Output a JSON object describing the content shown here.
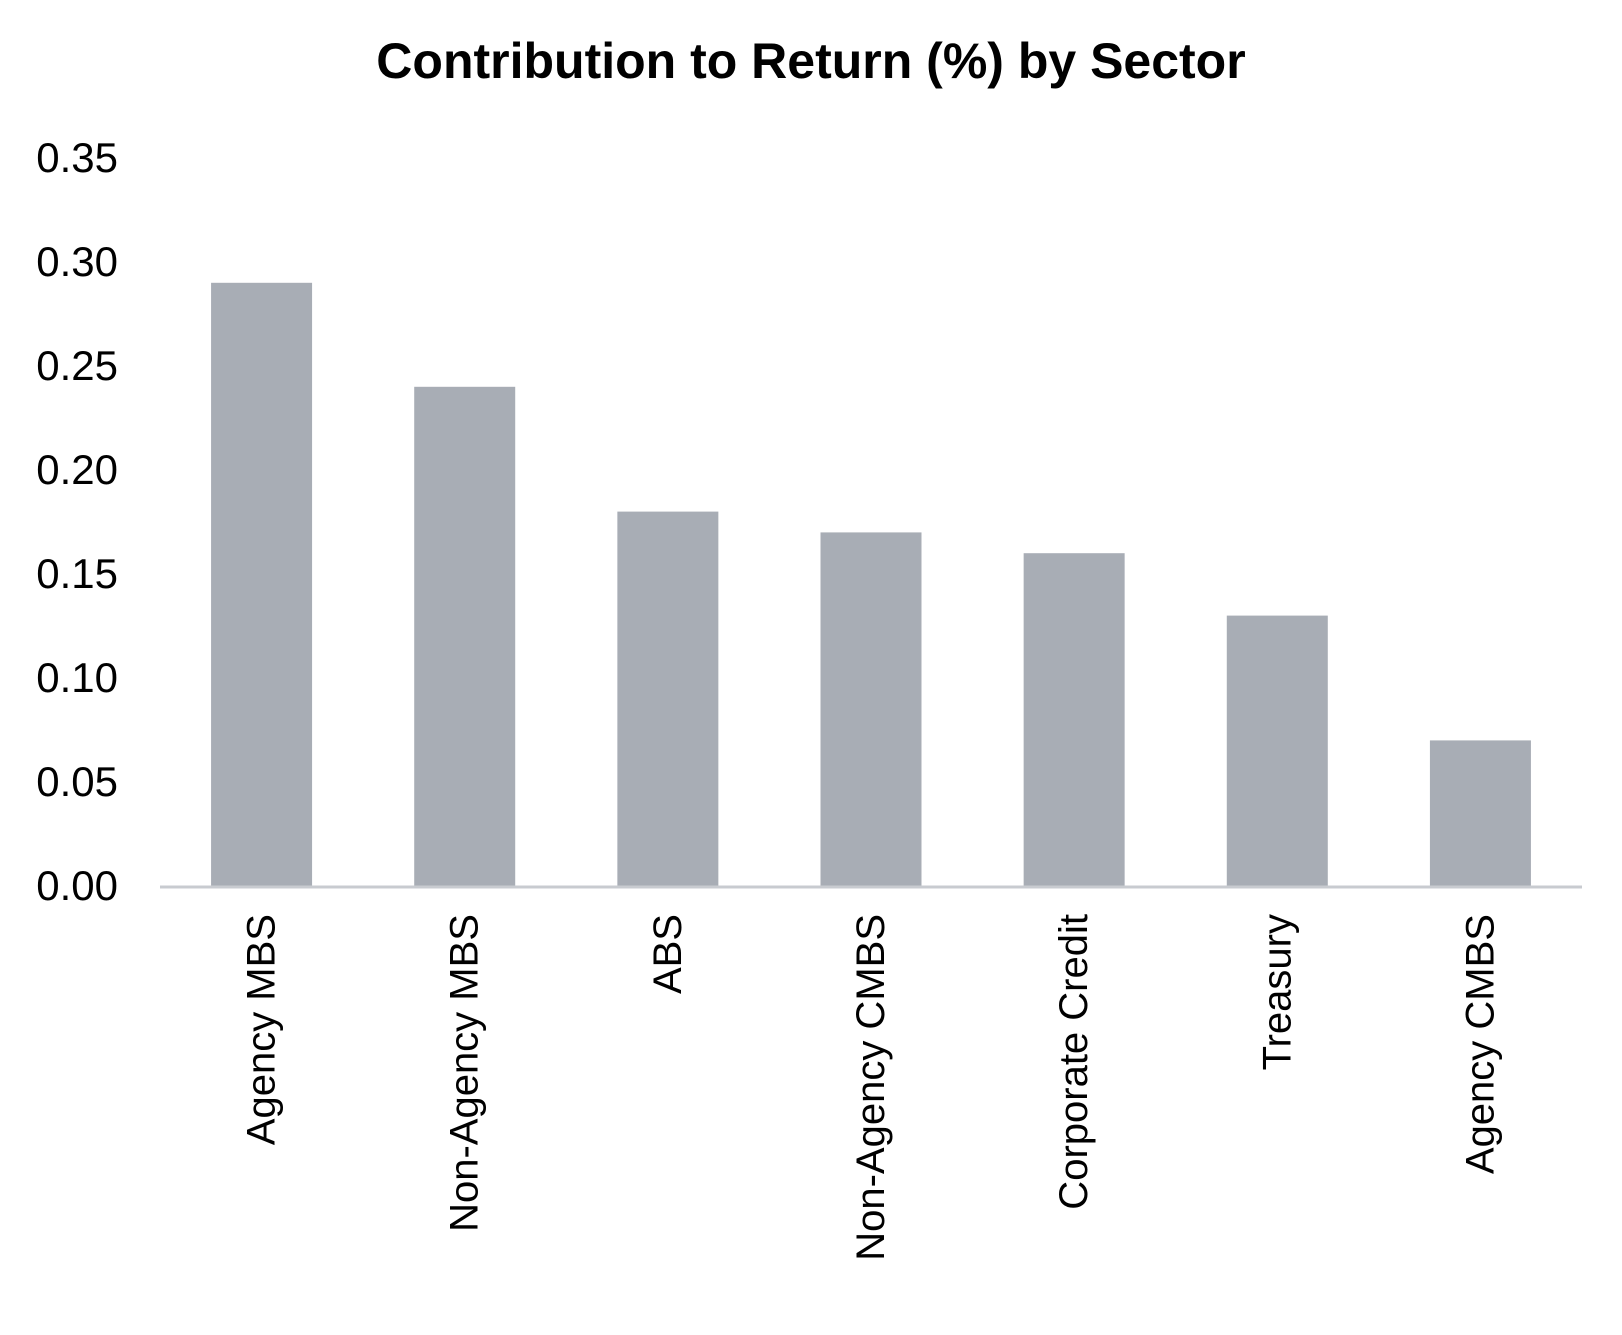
{
  "chart_data": {
    "type": "bar",
    "title": "Contribution to Return (%) by Sector",
    "xlabel": "",
    "ylabel": "",
    "categories": [
      "Agency MBS",
      "Non-Agency MBS",
      "ABS",
      "Non-Agency CMBS",
      "Corporate Credit",
      "Treasury",
      "Agency CMBS"
    ],
    "values": [
      0.29,
      0.24,
      0.18,
      0.17,
      0.16,
      0.13,
      0.07
    ],
    "ylim": [
      0,
      0.35
    ],
    "yticks": [
      "0.00",
      "0.05",
      "0.10",
      "0.15",
      "0.20",
      "0.25",
      "0.30",
      "0.35"
    ],
    "grid": false,
    "legend": "none",
    "colors": {
      "bar": "#a8adb5",
      "axis": "#c8cbd0",
      "text": "#000000"
    }
  }
}
